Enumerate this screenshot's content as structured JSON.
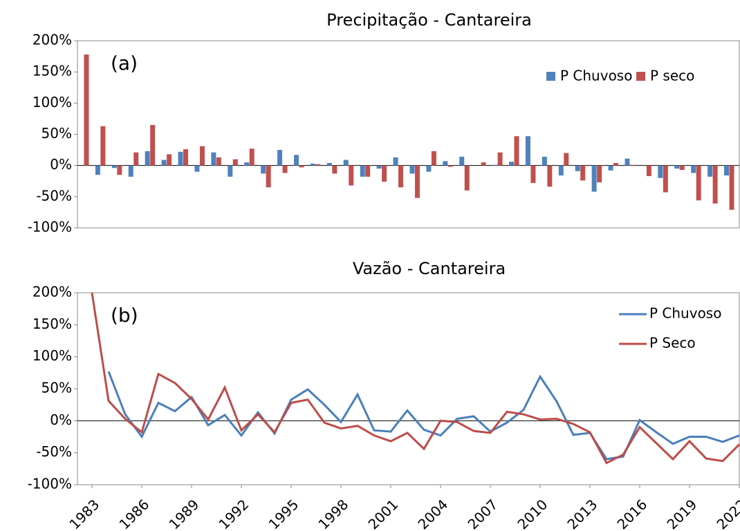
{
  "chart_data": [
    {
      "type": "bar",
      "title": "Precipitação - Cantareira",
      "annotation": "(a)",
      "legend": "top-right",
      "ylim": [
        -100,
        200
      ],
      "yticks": [
        {
          "value": -100,
          "label": "-100%"
        },
        {
          "value": -50,
          "label": "-50%"
        },
        {
          "value": 0,
          "label": "0%"
        },
        {
          "value": 50,
          "label": "50%"
        },
        {
          "value": 100,
          "label": "100%"
        },
        {
          "value": 150,
          "label": "150%"
        },
        {
          "value": 200,
          "label": "200%"
        }
      ],
      "series": [
        {
          "name": "P Chuvoso",
          "color": "#4f81bd",
          "values": [
            0,
            -15,
            -4,
            -18,
            23,
            9,
            22,
            -10,
            21,
            -18,
            5,
            -13,
            25,
            17,
            3,
            4,
            9,
            -18,
            -5,
            13,
            -13,
            -10,
            7,
            14,
            0,
            1,
            6,
            47,
            14,
            -16,
            -9,
            -42,
            -8,
            11,
            0,
            -20,
            -5,
            -12,
            -18,
            -16
          ]
        },
        {
          "name": "P seco",
          "color": "#c0504d",
          "values": [
            178,
            63,
            -15,
            21,
            65,
            18,
            26,
            31,
            13,
            10,
            27,
            -35,
            -12,
            -3,
            2,
            -13,
            -32,
            -18,
            -26,
            -35,
            -52,
            23,
            -2,
            -40,
            5,
            21,
            47,
            -28,
            -34,
            20,
            -24,
            -27,
            4,
            1,
            -17,
            -43,
            -7,
            -56,
            -61,
            -71
          ]
        }
      ]
    },
    {
      "type": "line",
      "title": "Vazão - Cantareira",
      "annotation": "(b)",
      "legend": "top-right",
      "x": [
        1983,
        1984,
        1985,
        1986,
        1987,
        1988,
        1989,
        1990,
        1991,
        1992,
        1993,
        1994,
        1995,
        1996,
        1997,
        1998,
        1999,
        2000,
        2001,
        2002,
        2003,
        2004,
        2005,
        2006,
        2007,
        2008,
        2009,
        2010,
        2011,
        2012,
        2013,
        2014,
        2015,
        2016,
        2017,
        2018,
        2019,
        2020,
        2021,
        2022
      ],
      "xlim": [
        1983,
        2022
      ],
      "xticks": [
        1983,
        1986,
        1989,
        1992,
        1995,
        1998,
        2001,
        2004,
        2007,
        2010,
        2013,
        2016,
        2019,
        2022
      ],
      "ylim": [
        -100,
        200
      ],
      "yticks": [
        {
          "value": -100,
          "label": "-100%"
        },
        {
          "value": -50,
          "label": "-50%"
        },
        {
          "value": 0,
          "label": "0%"
        },
        {
          "value": 50,
          "label": "50%"
        },
        {
          "value": 100,
          "label": "100%"
        },
        {
          "value": 150,
          "label": "150%"
        },
        {
          "value": 200,
          "label": "200%"
        }
      ],
      "series": [
        {
          "name": "P Chuvoso",
          "color": "#4a7ebb",
          "values": [
            null,
            77,
            10,
            -25,
            28,
            15,
            37,
            -7,
            9,
            -23,
            13,
            -20,
            33,
            49,
            25,
            -2,
            41,
            -15,
            -17,
            16,
            -14,
            -23,
            3,
            7,
            -17,
            -3,
            17,
            69,
            30,
            -22,
            -19,
            -60,
            -56,
            1,
            -18,
            -36,
            -25,
            -25,
            -33,
            -23
          ]
        },
        {
          "name": "P Seco",
          "color": "#be4b48",
          "values": [
            200,
            31,
            3,
            -18,
            73,
            59,
            34,
            2,
            52,
            -15,
            10,
            -18,
            28,
            33,
            -3,
            -12,
            -8,
            -23,
            -32,
            -19,
            -44,
            0,
            -2,
            -16,
            -19,
            14,
            10,
            2,
            3,
            -5,
            -18,
            -66,
            -53,
            -10,
            -35,
            -60,
            -32,
            -59,
            -63,
            -37
          ]
        }
      ]
    }
  ]
}
